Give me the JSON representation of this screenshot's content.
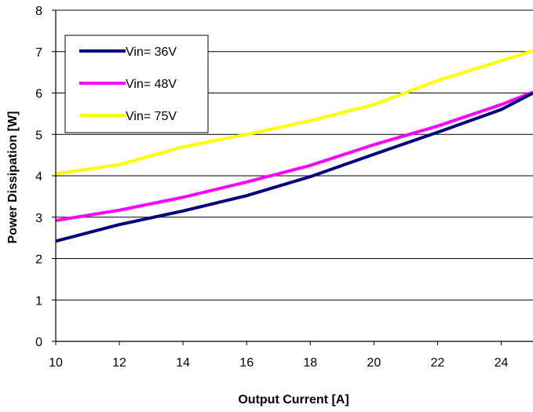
{
  "chart_data": {
    "type": "line",
    "title": "",
    "xlabel": "Output Current [A]",
    "ylabel": "Power Dissipation [W]",
    "xlim": [
      10,
      25
    ],
    "ylim": [
      0,
      8
    ],
    "x_ticks": [
      "10",
      "12",
      "14",
      "16",
      "18",
      "20",
      "22",
      "24"
    ],
    "y_ticks": [
      "0",
      "1",
      "2",
      "3",
      "4",
      "5",
      "6",
      "7",
      "8"
    ],
    "grid": "horizontal",
    "legend_position": "top-left",
    "series": [
      {
        "name": "Vin= 36V",
        "color": "#000080",
        "x": [
          10,
          12,
          14,
          16,
          18,
          20,
          22,
          24,
          25
        ],
        "y": [
          2.42,
          2.82,
          3.15,
          3.52,
          3.98,
          4.52,
          5.05,
          5.6,
          6.0
        ]
      },
      {
        "name": "Vin= 48V",
        "color": "#ff00ff",
        "x": [
          10,
          12,
          14,
          16,
          18,
          20,
          22,
          24,
          25
        ],
        "y": [
          2.92,
          3.17,
          3.48,
          3.85,
          4.25,
          4.75,
          5.2,
          5.72,
          6.02
        ]
      },
      {
        "name": "Vin= 75V",
        "color": "#ffff00",
        "x": [
          10,
          12,
          14,
          16,
          18,
          20,
          22,
          24,
          25
        ],
        "y": [
          4.05,
          4.27,
          4.7,
          5.0,
          5.33,
          5.72,
          6.3,
          6.78,
          7.02
        ]
      }
    ]
  }
}
